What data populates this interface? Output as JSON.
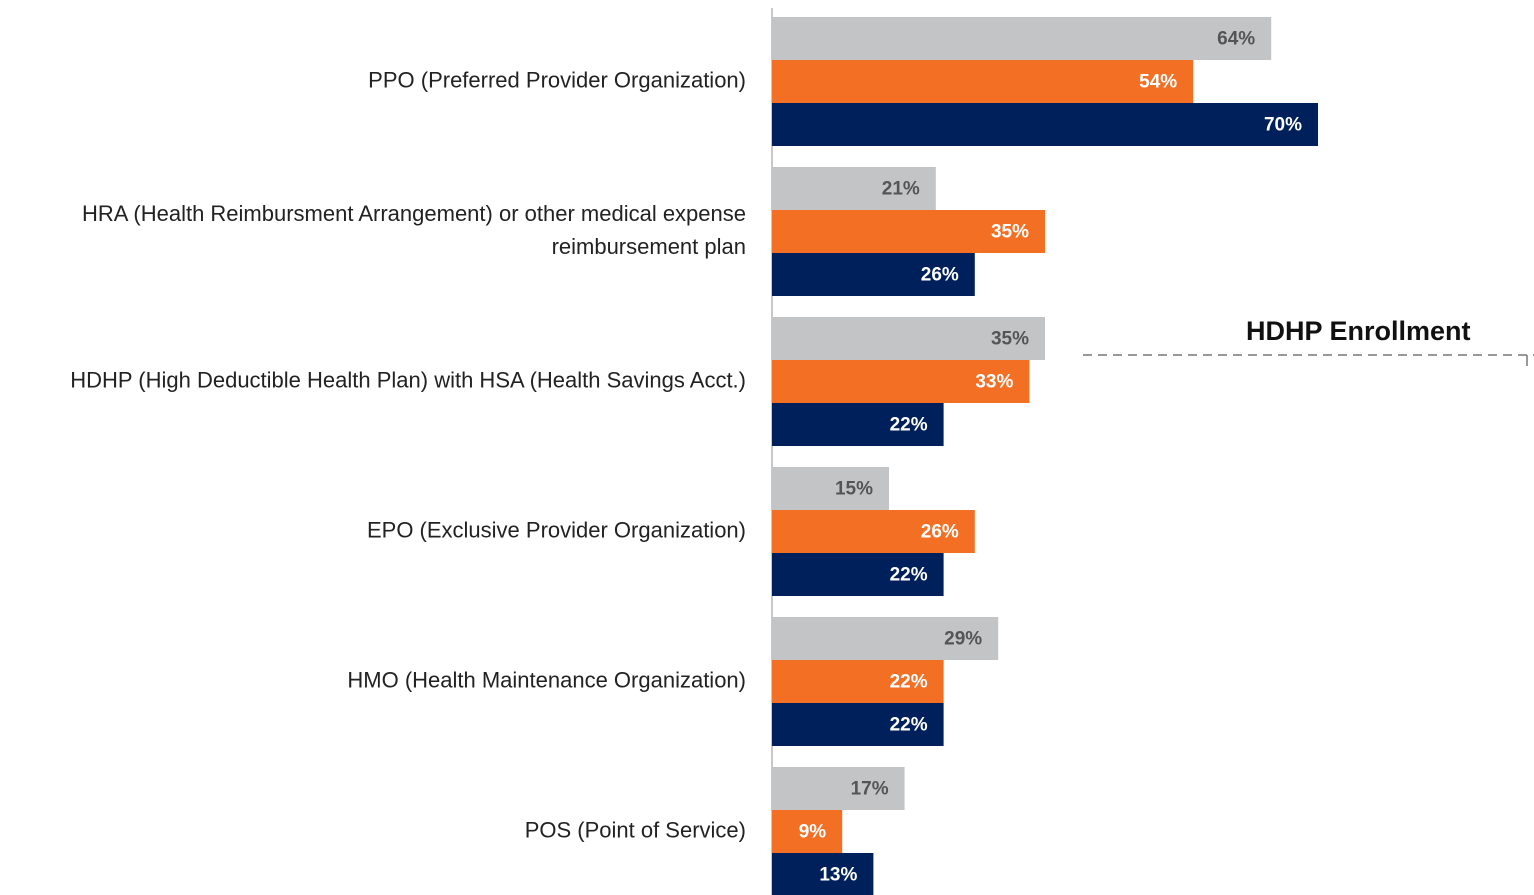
{
  "chart_data": {
    "type": "bar",
    "orientation": "horizontal",
    "categories": [
      "PPO (Preferred Provider Organization)",
      "HRA (Health Reimbursment Arrangement) or other medical expense reimbursement plan",
      "HDHP (High Deductible Health Plan) with HSA (Health Savings Acct.)",
      "EPO (Exclusive Provider Organization)",
      "HMO (Health Maintenance Organization)",
      "POS (Point of Service)"
    ],
    "series": [
      {
        "color": "#c3c4c6",
        "label_color": "#555555",
        "values": [
          64,
          21,
          35,
          15,
          29,
          17
        ],
        "value_labels": [
          "64%",
          "21%",
          "35%",
          "15%",
          "29%",
          "17%"
        ]
      },
      {
        "color": "#f26f24",
        "label_color": "#ffffff",
        "values": [
          54,
          35,
          33,
          26,
          22,
          9
        ],
        "value_labels": [
          "54%",
          "35%",
          "33%",
          "26%",
          "22%",
          "9%"
        ]
      },
      {
        "color": "#00205b",
        "label_color": "#ffffff",
        "values": [
          70,
          26,
          22,
          22,
          22,
          13
        ],
        "value_labels": [
          "70%",
          "26%",
          "22%",
          "22%",
          "22%",
          "13%"
        ]
      }
    ],
    "annotation": "HDHP Enrollment"
  }
}
